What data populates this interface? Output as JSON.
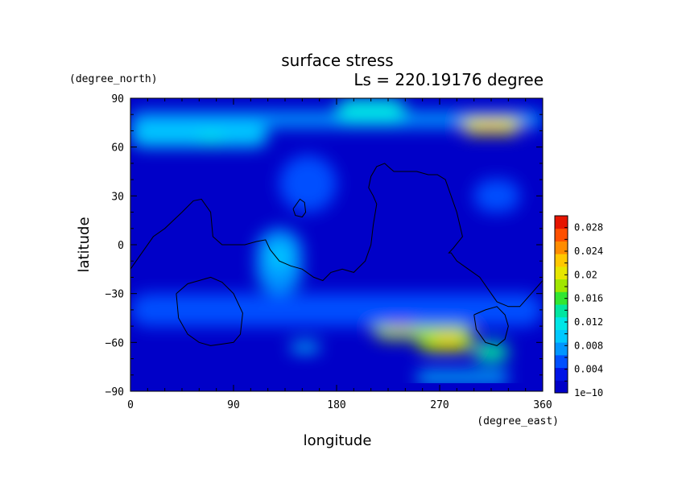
{
  "chart_data": {
    "type": "heatmap",
    "title": "surface stress",
    "subtitle": "Ls = 220.19176 degree",
    "xlabel": "longitude",
    "ylabel": "latitude",
    "x_unit": "(degree_east)",
    "y_unit": "(degree_north)",
    "xlim": [
      0,
      360
    ],
    "ylim": [
      -90,
      90
    ],
    "x_ticks": [
      "0",
      "90",
      "180",
      "270",
      "360"
    ],
    "y_ticks": [
      "90",
      "60",
      "30",
      "0",
      "−30",
      "−60",
      "−90"
    ],
    "colorbar": {
      "min": 1e-10,
      "max": 0.03,
      "tick_labels": [
        "0.028",
        "0.024",
        "0.02",
        "0.016",
        "0.012",
        "0.008",
        "0.004",
        "1e−10"
      ],
      "tick_values": [
        0.028,
        0.024,
        0.02,
        0.016,
        0.012,
        0.008,
        0.004,
        0
      ],
      "colors": [
        "#0000c8",
        "#0014e6",
        "#0050ff",
        "#0096ff",
        "#00c8ff",
        "#00e6e6",
        "#00e6a0",
        "#32e632",
        "#a0e600",
        "#e6e600",
        "#ffc800",
        "#ff8c00",
        "#ff5000",
        "#e61400"
      ]
    },
    "background_value": 0.002,
    "features": [
      {
        "lon": [
          0,
          360
        ],
        "lat": [
          72,
          82
        ],
        "value": 0.007
      },
      {
        "lon": [
          0,
          120
        ],
        "lat": [
          60,
          75
        ],
        "value": 0.009
      },
      {
        "lon": [
          60,
          80
        ],
        "lat": [
          62,
          68
        ],
        "value": 0.011
      },
      {
        "lon": [
          180,
          240
        ],
        "lat": [
          75,
          90
        ],
        "value": 0.011
      },
      {
        "lon": [
          290,
          340
        ],
        "lat": [
          68,
          78
        ],
        "value": 0.02
      },
      {
        "lon": [
          305,
          325
        ],
        "lat": [
          71,
          75
        ],
        "value": 0.023
      },
      {
        "lon": [
          130,
          180
        ],
        "lat": [
          20,
          55
        ],
        "value": 0.006
      },
      {
        "lon": [
          110,
          150
        ],
        "lat": [
          -30,
          10
        ],
        "value": 0.007
      },
      {
        "lon": [
          120,
          140
        ],
        "lat": [
          -15,
          0
        ],
        "value": 0.01
      },
      {
        "lon": [
          210,
          260
        ],
        "lat": [
          -58,
          -38
        ],
        "value": 0.019
      },
      {
        "lon": [
          220,
          250
        ],
        "lat": [
          -52,
          -42
        ],
        "value": 0.024
      },
      {
        "lon": [
          250,
          300
        ],
        "lat": [
          -66,
          -50
        ],
        "value": 0.019
      },
      {
        "lon": [
          265,
          290
        ],
        "lat": [
          -62,
          -56
        ],
        "value": 0.023
      },
      {
        "lon": [
          300,
          330
        ],
        "lat": [
          -72,
          -60
        ],
        "value": 0.013
      },
      {
        "lon": [
          250,
          330
        ],
        "lat": [
          -85,
          -78
        ],
        "value": 0.009
      },
      {
        "lon": [
          140,
          165
        ],
        "lat": [
          -66,
          -60
        ],
        "value": 0.009
      },
      {
        "lon": [
          0,
          360
        ],
        "lat": [
          -50,
          -30
        ],
        "value": 0.005
      },
      {
        "lon": [
          300,
          340
        ],
        "lat": [
          20,
          40
        ],
        "value": 0.006
      }
    ],
    "contours": [
      {
        "lon": [
          0,
          10,
          20,
          30,
          45,
          55,
          62,
          70,
          72,
          80,
          90,
          100,
          110,
          118,
          122,
          130,
          140,
          150,
          160,
          168,
          175,
          185,
          195,
          205,
          210,
          212,
          215,
          212,
          208,
          210,
          215,
          222,
          225,
          230,
          250,
          260,
          268,
          275,
          285,
          290,
          282,
          278,
          280,
          285,
          295,
          305,
          315,
          320,
          330,
          340,
          350,
          360
        ],
        "lat": [
          -15,
          -5,
          5,
          10,
          20,
          27,
          28,
          20,
          5,
          0,
          0,
          0,
          2,
          3,
          -3,
          -10,
          -13,
          -15,
          -20,
          -22,
          -17,
          -15,
          -17,
          -10,
          0,
          12,
          25,
          30,
          35,
          42,
          48,
          50,
          48,
          45,
          45,
          43,
          43,
          40,
          20,
          5,
          -2,
          -5,
          -5,
          -10,
          -15,
          -20,
          -30,
          -35,
          -38,
          -38,
          -30,
          -22
        ]
      },
      {
        "lon": [
          40,
          50,
          60,
          70,
          80,
          90,
          98,
          96,
          90,
          80,
          70,
          60,
          50,
          42,
          40
        ],
        "lat": [
          -30,
          -24,
          -22,
          -20,
          -23,
          -30,
          -42,
          -55,
          -60,
          -61,
          -62,
          -60,
          -55,
          -45,
          -30
        ]
      },
      {
        "lon": [
          300,
          310,
          320,
          327,
          330,
          327,
          320,
          310,
          302,
          300
        ],
        "lat": [
          -43,
          -40,
          -38,
          -43,
          -50,
          -58,
          -62,
          -60,
          -52,
          -43
        ]
      },
      {
        "lon": [
          142,
          148,
          152,
          153,
          150,
          144,
          142
        ],
        "lat": [
          22,
          28,
          26,
          20,
          17,
          18,
          22
        ]
      }
    ]
  }
}
